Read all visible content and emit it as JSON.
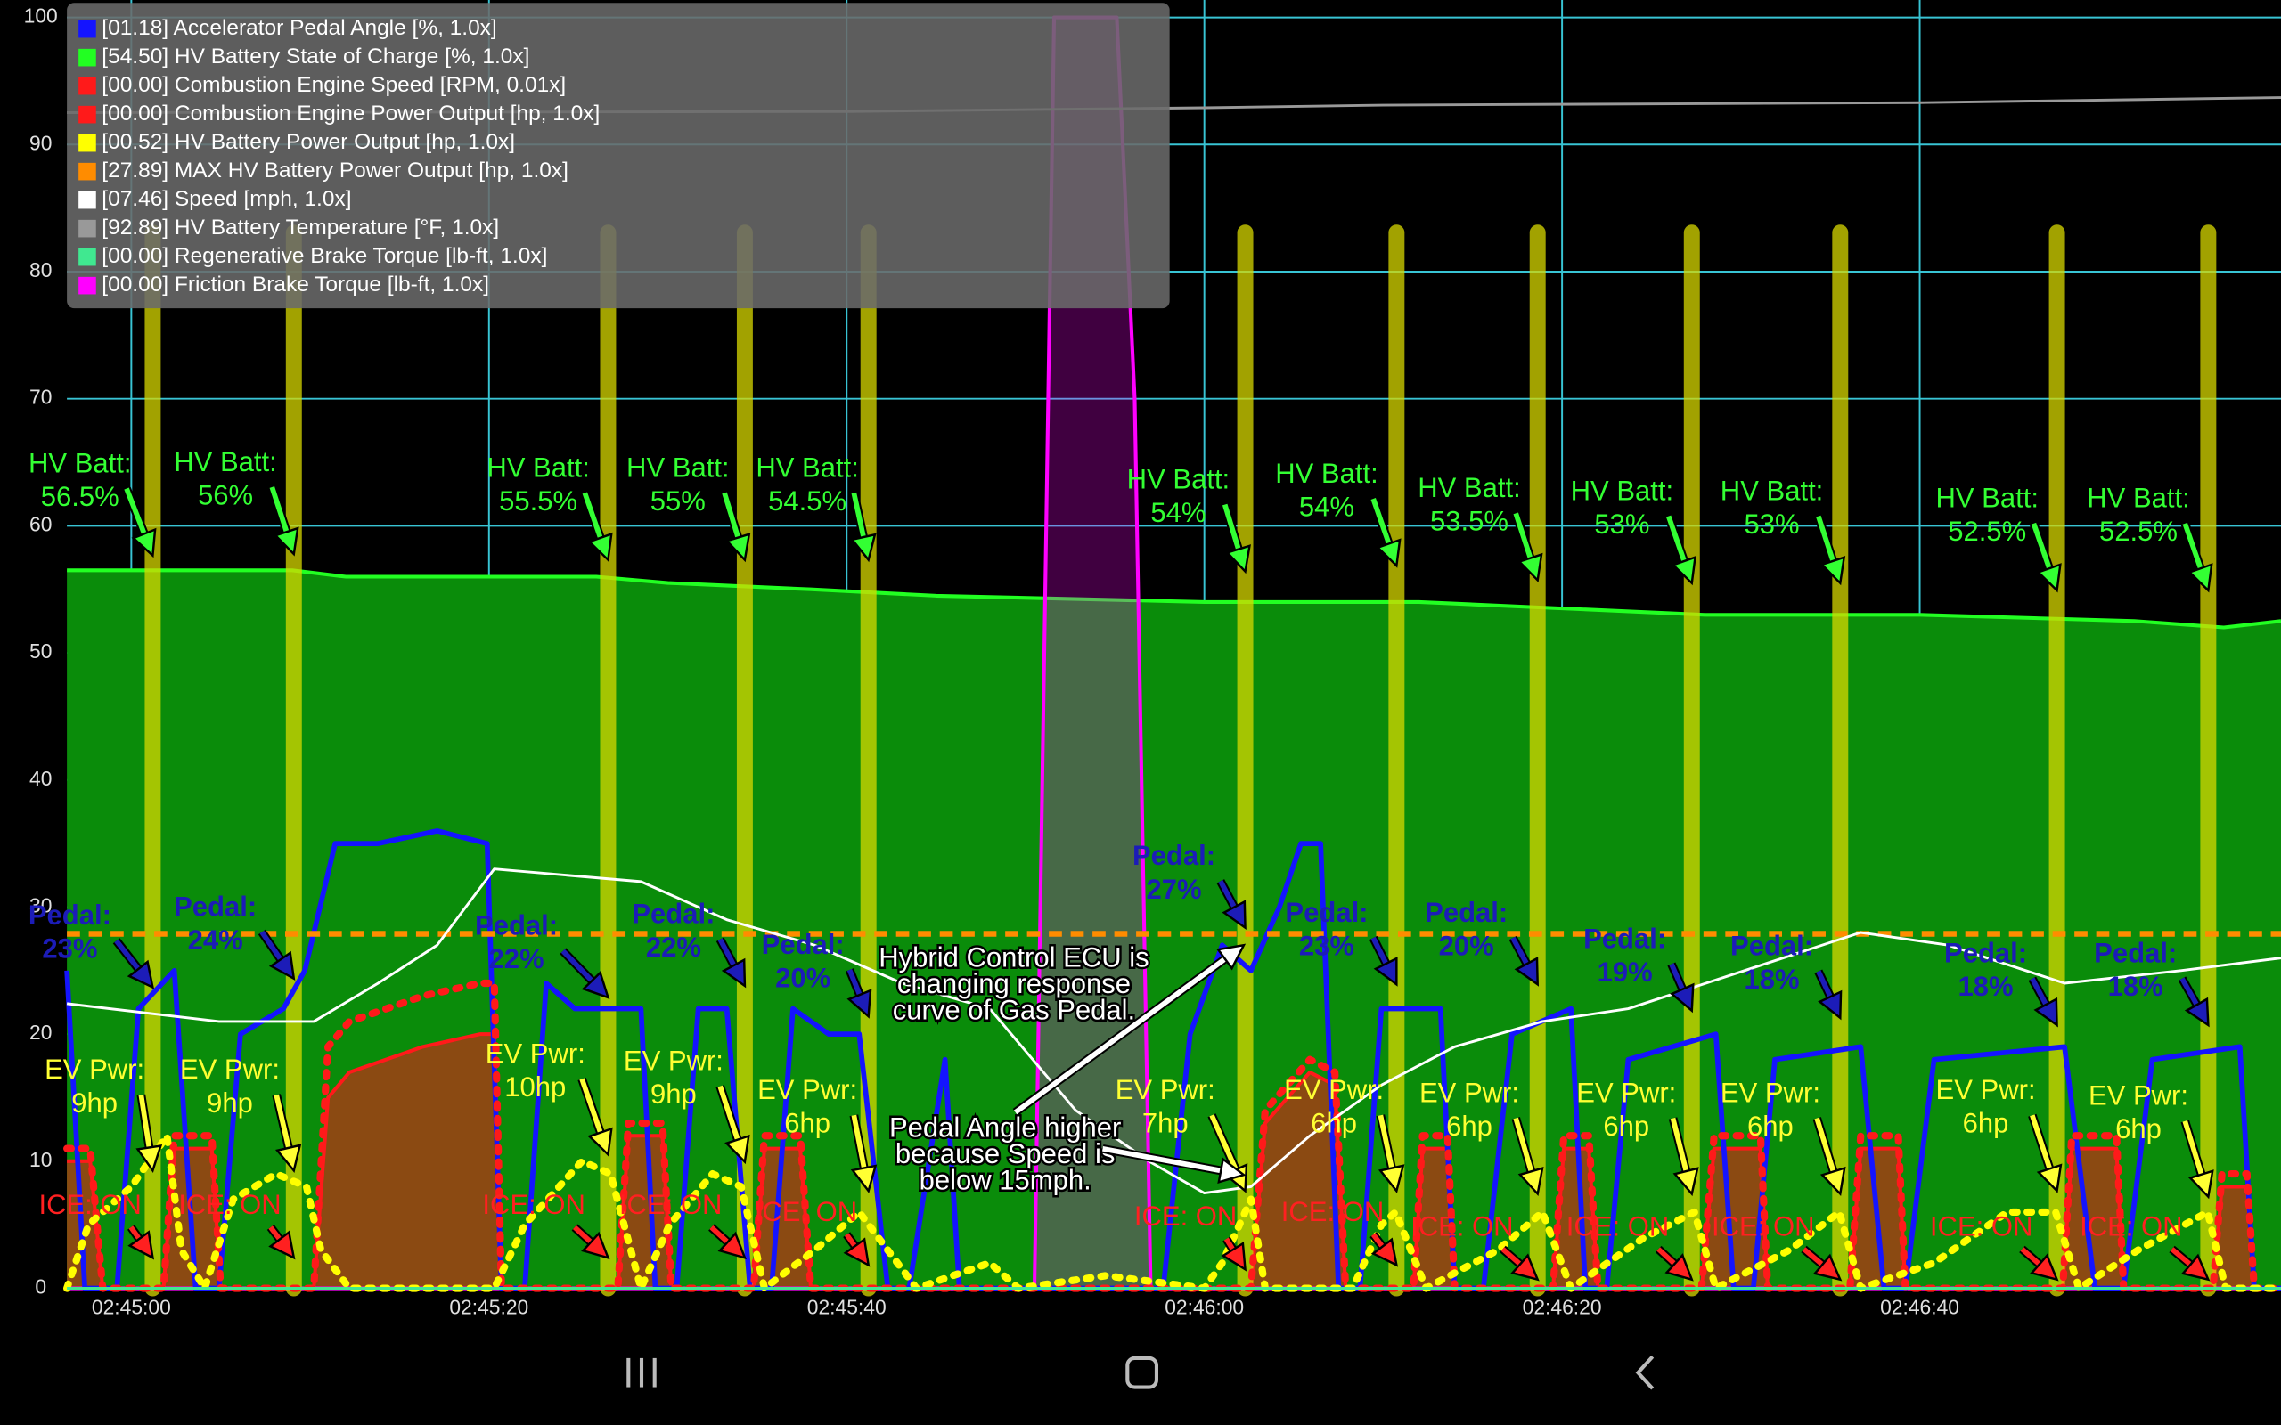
{
  "chart_data": {
    "type": "line",
    "xlim": [
      -3.6,
      120.2
    ],
    "ylim": [
      0,
      100
    ],
    "grid": true,
    "yticks": [
      0,
      10,
      20,
      30,
      40,
      50,
      60,
      70,
      80,
      90,
      100
    ],
    "xticks": [
      {
        "value": 0,
        "label": "02:45:00"
      },
      {
        "value": 20,
        "label": "02:45:20"
      },
      {
        "value": 40,
        "label": "02:45:40"
      },
      {
        "value": 60,
        "label": "02:46:00"
      },
      {
        "value": 80,
        "label": "02:46:20"
      },
      {
        "value": 100,
        "label": "02:46:40"
      }
    ],
    "series": [
      {
        "name": "[01.18] Accelerator Pedal Angle [%, 1.0x]",
        "color": "#1414ff",
        "style": "line",
        "x": [
          -3.6,
          -2.6,
          -0.8,
          0.4,
          2.4,
          3.6,
          4.9,
          6.1,
          8.5,
          9.7,
          11.4,
          13.8,
          17.1,
          19.9,
          20.7,
          22,
          23.2,
          24.8,
          28.5,
          29.3,
          30.5,
          31.7,
          33.3,
          34.6,
          35.8,
          37,
          39,
          40.7,
          42.3,
          43.5,
          45.5,
          46.3,
          49.6,
          57.7,
          59.2,
          61,
          62.6,
          64.2,
          65.4,
          66.5,
          67.5,
          68.7,
          69.9,
          73.2,
          74,
          75.6,
          77.2,
          80.5,
          81.3,
          82.5,
          83.7,
          88.6,
          89.6,
          90.7,
          91.9,
          96.7,
          98,
          99.2,
          100.8,
          108.1,
          109.8,
          111.4,
          113,
          117.9,
          118.7,
          120.2
        ],
        "values": [
          25,
          0,
          0,
          22,
          25,
          0,
          0,
          20,
          22,
          25,
          35,
          35,
          36,
          35,
          0,
          0,
          24,
          22,
          22,
          0,
          0,
          22,
          22,
          0,
          0,
          22,
          20,
          20,
          0,
          0,
          18,
          0,
          0,
          0,
          20,
          27,
          25,
          30,
          35,
          35,
          0,
          0,
          22,
          22,
          0,
          0,
          20,
          22,
          0,
          0,
          18,
          20,
          0,
          0,
          18,
          19,
          0,
          0,
          18,
          19,
          0,
          0,
          18,
          19,
          0,
          0
        ]
      },
      {
        "name": "[54.50] HV Battery State of Charge [%, 1.0x]",
        "color": "#22ff22",
        "style": "area",
        "fill": "#0a8c0a",
        "x": [
          -3.6,
          9,
          12,
          26,
          30,
          38,
          45,
          60,
          72,
          80,
          88,
          100,
          112,
          117,
          120.2
        ],
        "values": [
          56.5,
          56.5,
          56,
          56,
          55.5,
          55,
          54.5,
          54,
          54,
          53.5,
          53,
          53,
          52.5,
          52,
          52.5
        ]
      },
      {
        "name": "[00.00] Combustion Engine Speed [RPM, 0.01x]",
        "color": "#ff1a1a",
        "style": "dotted",
        "x": [
          -3.6,
          -2.3,
          -1.6,
          1.8,
          2.4,
          4.5,
          5,
          10.2,
          11,
          12.2,
          16.3,
          19.5,
          20.3,
          20.7,
          27.2,
          27.8,
          29.7,
          30.2,
          34.8,
          35.4,
          37.4,
          38,
          62.6,
          63.4,
          65.9,
          67.3,
          67.9,
          71.7,
          72.2,
          73.6,
          74,
          79.5,
          80.1,
          81.5,
          82,
          87.8,
          88.5,
          91.1,
          91.5,
          96.1,
          96.7,
          98.8,
          99.2,
          108,
          108.5,
          111,
          111.4,
          116.4,
          116.9,
          118.3,
          118.7,
          120.2
        ],
        "values": [
          11,
          11,
          0,
          0,
          12,
          12,
          0,
          0,
          19,
          21,
          23,
          24,
          24,
          0,
          0,
          13,
          13,
          0,
          0,
          12,
          12,
          0,
          0,
          14,
          18,
          17,
          0,
          0,
          12,
          12,
          0,
          0,
          12,
          12,
          0,
          0,
          12,
          12,
          0,
          0,
          12,
          12,
          0,
          0,
          12,
          12,
          0,
          0,
          9,
          9,
          0,
          0
        ]
      },
      {
        "name": "[00.00] Combustion Engine Power Output [hp, 1.0x]",
        "color": "#ff1a1a",
        "style": "area",
        "fill": "#8b4a12",
        "x": [
          -3.6,
          -2.3,
          -1.6,
          1.8,
          2.4,
          4.5,
          5,
          10.2,
          11,
          12.2,
          16.3,
          19.5,
          20.3,
          20.7,
          27.2,
          27.8,
          29.7,
          30.2,
          34.8,
          35.4,
          37.4,
          38,
          62.6,
          63.4,
          65.9,
          67.3,
          67.9,
          71.7,
          72.2,
          73.6,
          74,
          79.5,
          80.1,
          81.5,
          82,
          87.8,
          88.5,
          91.1,
          91.5,
          96.1,
          96.7,
          98.8,
          99.2,
          108,
          108.5,
          111,
          111.4,
          116.4,
          116.9,
          118.3,
          118.7,
          120.2
        ],
        "values": [
          10,
          10,
          0,
          0,
          11,
          11,
          0,
          0,
          15,
          17,
          19,
          20,
          20,
          0,
          0,
          12,
          12,
          0,
          0,
          11,
          11,
          0,
          0,
          13,
          17,
          16,
          0,
          0,
          11,
          11,
          0,
          0,
          11,
          11,
          0,
          0,
          11,
          11,
          0,
          0,
          11,
          11,
          0,
          0,
          11,
          11,
          0,
          0,
          8,
          8,
          0,
          0
        ]
      },
      {
        "name": "[00.52] HV Battery Power Output [hp, 1.0x]",
        "color": "#ffff00",
        "style": "dotted",
        "x": [
          -3.6,
          -2.4,
          0,
          2,
          2.8,
          4.1,
          5.7,
          8.1,
          9.8,
          10.6,
          12.2,
          17.1,
          20.3,
          22,
          25.2,
          26.8,
          28.5,
          30.1,
          32.5,
          34.1,
          35.4,
          38.2,
          40.7,
          42.3,
          43.9,
          48,
          49.6,
          54.5,
          60,
          61,
          62.6,
          63.4,
          68.3,
          69.9,
          70.7,
          72.4,
          76.4,
          78.9,
          80.5,
          84.6,
          87.4,
          88.6,
          92.7,
          95.5,
          96.7,
          100.8,
          104.9,
          107.6,
          108.9,
          112.2,
          116.1,
          117.1,
          120.2
        ],
        "values": [
          0,
          5,
          8,
          12,
          3,
          0,
          7,
          9,
          8,
          3,
          0,
          0,
          0,
          5,
          10,
          9,
          0,
          5,
          9,
          8,
          0,
          3,
          6,
          3,
          0,
          2,
          0,
          1,
          0,
          2,
          7,
          0,
          0,
          5,
          6,
          0,
          3,
          6,
          0,
          4,
          6,
          0,
          3,
          6,
          0,
          2,
          6,
          6,
          0,
          3,
          6,
          0,
          0
        ]
      },
      {
        "name": "[27.89] MAX HV Battery Power Output [hp, 1.0x]",
        "color": "#ff8c00",
        "style": "dashed",
        "x": [
          -3.6,
          120.2
        ],
        "values": [
          27.89,
          27.89
        ]
      },
      {
        "name": "[07.46] Speed [mph, 1.0x]",
        "color": "#ffffff",
        "style": "line",
        "x": [
          -3.6,
          4.9,
          10.2,
          13.8,
          17.1,
          20.3,
          28.5,
          33.3,
          38.2,
          43.1,
          48,
          52.8,
          56.9,
          60,
          62.6,
          65.9,
          69.9,
          74,
          78.9,
          83.7,
          90.2,
          96.7,
          101.6,
          108.1,
          114.6,
          120.2
        ],
        "values": [
          22.4,
          21,
          21,
          24,
          27,
          33,
          32,
          29,
          27,
          24,
          22,
          14,
          10,
          7.5,
          8,
          12,
          16,
          19,
          21,
          22,
          25,
          28,
          27,
          24,
          25,
          26
        ]
      },
      {
        "name": "[92.89] HV Battery Temperature [°F, 1.0x]",
        "color": "#999999",
        "style": "line",
        "x": [
          -3.6,
          40,
          60,
          70,
          100,
          120.2
        ],
        "values": [
          92.5,
          92.6,
          92.9,
          93.1,
          93.3,
          93.7
        ]
      },
      {
        "name": "[00.00] Regenerative Brake Torque [lb-ft, 1.0x]",
        "color": "#40e890",
        "style": "line",
        "x": [
          -3.6,
          120.2
        ],
        "values": [
          0,
          0
        ]
      },
      {
        "name": "[00.00] Friction Brake Torque [lb-ft, 1.0x]",
        "color": "#ff00ff",
        "style": "area",
        "fill": "#ff00ff",
        "x": [
          -3.6,
          50.5,
          51.6,
          55.1,
          56.1,
          57,
          120.2
        ],
        "values": [
          0,
          0,
          100,
          100,
          70,
          0,
          0
        ]
      }
    ],
    "annotation_groups": [
      {
        "color": "#33ff33",
        "labels": [
          [
            "HV Batt:",
            "56.5%"
          ],
          [
            "HV Batt:",
            "56%"
          ],
          [
            "HV Batt:",
            "55.5%"
          ],
          [
            "HV Batt:",
            "55%"
          ],
          [
            "HV Batt:",
            "54.5%"
          ],
          [
            "HV Batt:",
            "54%"
          ],
          [
            "HV Batt:",
            "54%"
          ],
          [
            "HV Batt:",
            "53.5%"
          ],
          [
            "HV Batt:",
            "53%"
          ],
          [
            "HV Batt:",
            "53%"
          ],
          [
            "HV Batt:",
            "52.5%"
          ],
          [
            "HV Batt:",
            "52.5%"
          ]
        ]
      },
      {
        "color": "#1c1cb8",
        "labels": [
          [
            "Pedal:",
            "23%"
          ],
          [
            "Pedal:",
            "24%"
          ],
          [
            "Pedal:",
            "22%"
          ],
          [
            "Pedal:",
            "22%"
          ],
          [
            "Pedal:",
            "20%"
          ],
          [
            "Pedal:",
            "27%"
          ],
          [
            "Pedal:",
            "23%"
          ],
          [
            "Pedal:",
            "20%"
          ],
          [
            "Pedal:",
            "19%"
          ],
          [
            "Pedal:",
            "18%"
          ],
          [
            "Pedal:",
            "18%"
          ],
          [
            "Pedal:",
            "18%"
          ]
        ]
      },
      {
        "color": "#ffff33",
        "labels": [
          [
            "EV Pwr:",
            "9hp"
          ],
          [
            "EV Pwr:",
            "9hp"
          ],
          [
            "EV Pwr:",
            "10hp"
          ],
          [
            "EV Pwr:",
            "9hp"
          ],
          [
            "EV Pwr:",
            "6hp"
          ],
          [
            "EV Pwr:",
            "7hp"
          ],
          [
            "EV Pwr:",
            "6hp"
          ],
          [
            "EV Pwr:",
            "6hp"
          ],
          [
            "EV Pwr:",
            "6hp"
          ],
          [
            "EV Pwr:",
            "6hp"
          ],
          [
            "EV Pwr:",
            "6hp"
          ],
          [
            "EV Pwr:",
            "6hp"
          ]
        ]
      },
      {
        "color": "#ff2020",
        "labels": [
          [
            "ICE: ON"
          ],
          [
            "ICE: ON"
          ],
          [
            "ICE: ON"
          ],
          [
            "ICE: ON"
          ],
          [
            "ICE: ON"
          ],
          [
            "ICE: ON"
          ],
          [
            "ICE: ON"
          ],
          [
            "ICE: ON"
          ],
          [
            "ICE: ON"
          ],
          [
            "ICE: ON"
          ],
          [
            "ICE: ON"
          ],
          [
            "ICE: ON"
          ]
        ]
      },
      {
        "color": "#ffffff",
        "labels": [
          [
            "Hybrid Control ECU is",
            "changing response",
            "curve of Gas Pedal."
          ],
          [
            "Pedal Angle higher",
            "because Speed is",
            "below 15mph."
          ]
        ]
      }
    ]
  }
}
